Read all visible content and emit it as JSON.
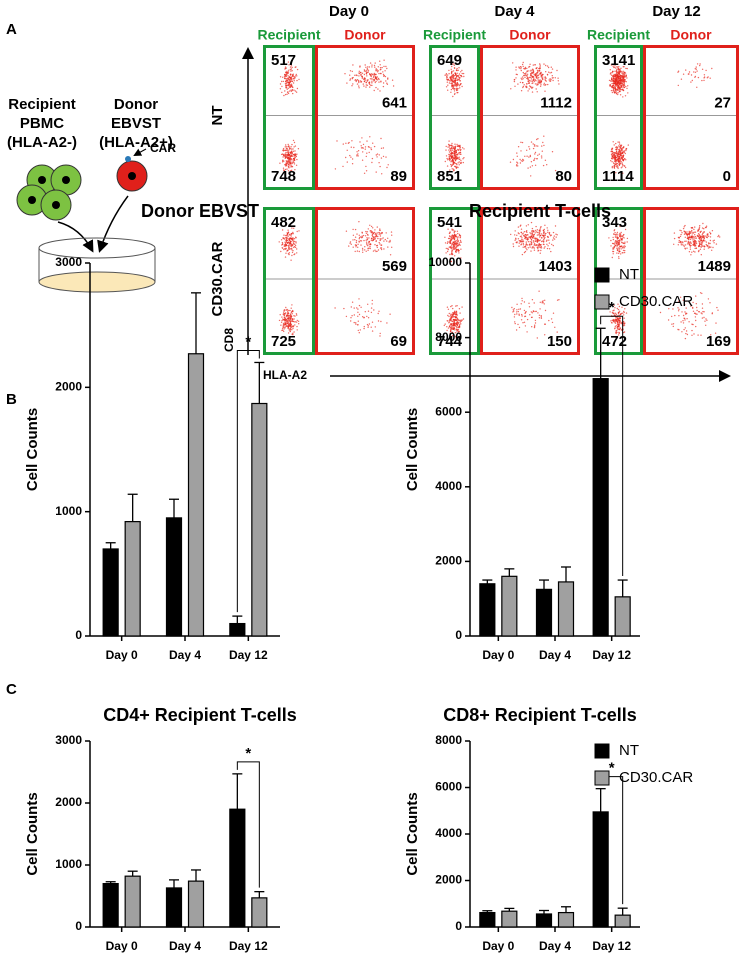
{
  "panel_a": {
    "letter": "A",
    "cartoon": {
      "recipient": [
        "Recipient",
        "PBMC",
        "(HLA-A2-)"
      ],
      "donor": [
        "Donor",
        "EBVST",
        "(HLA-A2+)"
      ],
      "car": "CAR"
    },
    "days": [
      "Day 0",
      "Day 4",
      "Day 12"
    ],
    "gates": {
      "recipient": "Recipient",
      "donor": "Donor"
    },
    "y_label": "CD8",
    "x_label": "HLA-A2",
    "rows": [
      {
        "label": "NT",
        "counts": [
          [
            517,
            641,
            748,
            89
          ],
          [
            649,
            1112,
            851,
            80
          ],
          [
            3141,
            27,
            1114,
            0
          ]
        ]
      },
      {
        "label": "CD30.CAR",
        "counts": [
          [
            482,
            569,
            725,
            69
          ],
          [
            541,
            1403,
            744,
            150
          ],
          [
            343,
            1489,
            472,
            169
          ]
        ]
      }
    ]
  },
  "panel_b_letter": "B",
  "panel_c_letter": "C",
  "chart_data": [
    {
      "type": "bar",
      "title": "Donor EBVST",
      "y_label": "Cell Counts",
      "categories": [
        "Day 0",
        "Day 4",
        "Day 12"
      ],
      "series": [
        {
          "name": "NT",
          "color": "#000000",
          "values": [
            700,
            950,
            100
          ],
          "errors": [
            50,
            150,
            60
          ]
        },
        {
          "name": "CD30.CAR",
          "color": "#a0a0a0",
          "values": [
            920,
            2270,
            1870
          ],
          "errors": [
            220,
            490,
            330
          ]
        }
      ],
      "ylim": [
        0,
        3000
      ],
      "yticks": [
        0,
        1000,
        2000,
        3000
      ],
      "significance": "*",
      "legend": false
    },
    {
      "type": "bar",
      "title": "Recipient T-cells",
      "y_label": "Cell Counts",
      "categories": [
        "Day 0",
        "Day 4",
        "Day 12"
      ],
      "series": [
        {
          "name": "NT",
          "color": "#000000",
          "values": [
            1400,
            1250,
            6900
          ],
          "errors": [
            100,
            250,
            1350
          ]
        },
        {
          "name": "CD30.CAR",
          "color": "#a0a0a0",
          "values": [
            1600,
            1450,
            1050
          ],
          "errors": [
            200,
            400,
            450
          ]
        }
      ],
      "ylim": [
        0,
        10000
      ],
      "yticks": [
        0,
        2000,
        4000,
        6000,
        8000,
        10000
      ],
      "significance": "*",
      "legend": true
    },
    {
      "type": "bar",
      "title": "CD4+ Recipient T-cells",
      "y_label": "Cell Counts",
      "categories": [
        "Day 0",
        "Day 4",
        "Day 12"
      ],
      "series": [
        {
          "name": "NT",
          "color": "#000000",
          "values": [
            700,
            630,
            1900
          ],
          "errors": [
            30,
            130,
            570
          ]
        },
        {
          "name": "CD30.CAR",
          "color": "#a0a0a0",
          "values": [
            820,
            740,
            470
          ],
          "errors": [
            80,
            180,
            100
          ]
        }
      ],
      "ylim": [
        0,
        3000
      ],
      "yticks": [
        0,
        1000,
        2000,
        3000
      ],
      "significance": "*",
      "legend": false
    },
    {
      "type": "bar",
      "title": "CD8+ Recipient T-cells",
      "y_label": "Cell Counts",
      "categories": [
        "Day 0",
        "Day 4",
        "Day 12"
      ],
      "series": [
        {
          "name": "NT",
          "color": "#000000",
          "values": [
            620,
            560,
            4950
          ],
          "errors": [
            80,
            150,
            1000
          ]
        },
        {
          "name": "CD30.CAR",
          "color": "#a0a0a0",
          "values": [
            680,
            620,
            510
          ],
          "errors": [
            120,
            250,
            300
          ]
        }
      ],
      "ylim": [
        0,
        8000
      ],
      "yticks": [
        0,
        2000,
        4000,
        6000,
        8000
      ],
      "significance": "*",
      "legend": true
    }
  ]
}
